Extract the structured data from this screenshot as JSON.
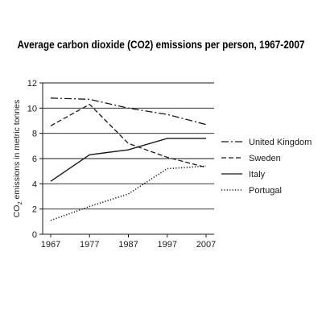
{
  "chart_data": {
    "type": "line",
    "title": "Average carbon dioxide (CO2) emissions per person, 1967-2007",
    "ylabel_prefix": "CO",
    "ylabel_sub": "2",
    "ylabel_suffix": " emissions in metric tonnes",
    "xlabel": "",
    "x": [
      1967,
      1977,
      1987,
      1997,
      2007
    ],
    "ylim": [
      0,
      12
    ],
    "yticks": [
      0,
      2,
      4,
      6,
      8,
      10,
      12
    ],
    "grid": true,
    "legend_position": "right",
    "series": [
      {
        "name": "United Kingdom",
        "style": "dashdot",
        "values": [
          10.8,
          10.7,
          10.0,
          9.5,
          8.7
        ]
      },
      {
        "name": "Sweden",
        "style": "dashed",
        "values": [
          8.6,
          10.3,
          7.2,
          6.1,
          5.3
        ]
      },
      {
        "name": "Italy",
        "style": "solid",
        "values": [
          4.2,
          6.3,
          6.7,
          7.6,
          7.6
        ]
      },
      {
        "name": "Portugal",
        "style": "dotted",
        "values": [
          1.1,
          2.2,
          3.2,
          5.2,
          5.4
        ]
      }
    ],
    "colors": {
      "line": "#1a1a1a",
      "grid": "#1a1a1a",
      "background": "#ffffff"
    }
  }
}
